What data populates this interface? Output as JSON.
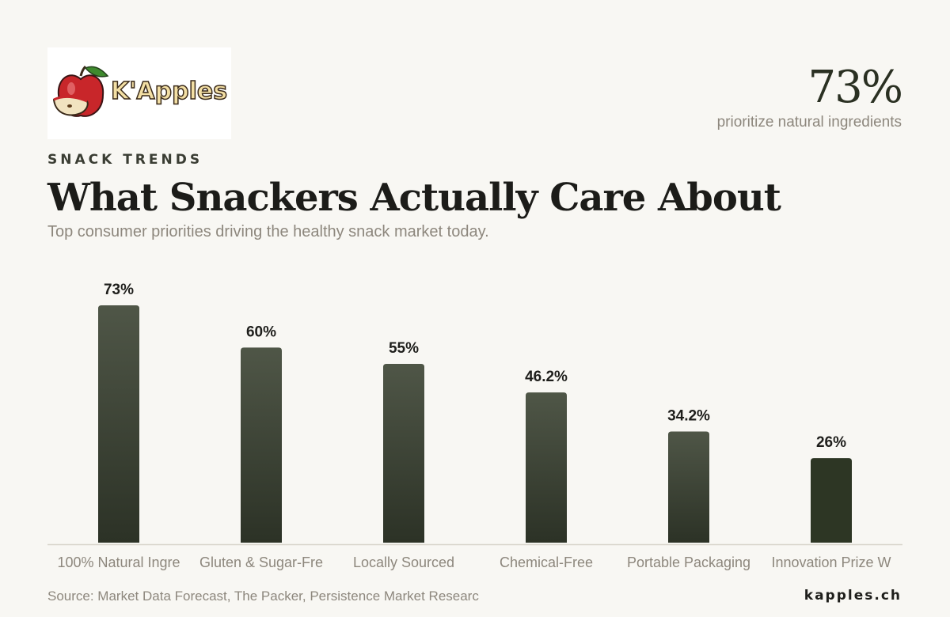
{
  "brand": {
    "logo_text": "K'Apples",
    "site": "kapples.ch"
  },
  "header": {
    "eyebrow": "SNACK TRENDS",
    "title": "What Snackers Actually Care About",
    "subtitle": "Top consumer priorities driving the healthy snack market today."
  },
  "kpi": {
    "value": "73%",
    "caption": "prioritize natural ingredients"
  },
  "footer": {
    "source": "Source: Market Data Forecast, The Packer, Persistence Market Researc"
  },
  "colors": {
    "background": "#f8f7f3",
    "bar_top": "#4f5647",
    "bar_bottom": "#2c3226",
    "bar_highlight": "#2d3624",
    "axis": "#d8d5cc"
  },
  "chart_data": {
    "type": "bar",
    "categories": [
      "100% Natural Ingre",
      "Gluten & Sugar-Fre",
      "Locally Sourced",
      "Chemical-Free",
      "Portable Packaging",
      "Innovation Prize W"
    ],
    "values": [
      73,
      60,
      55,
      46.2,
      34.2,
      26
    ],
    "value_labels": [
      "73%",
      "60%",
      "55%",
      "46.2%",
      "34.2%",
      "26%"
    ],
    "ylim": [
      0,
      73
    ],
    "grid": false,
    "legend": "none"
  }
}
